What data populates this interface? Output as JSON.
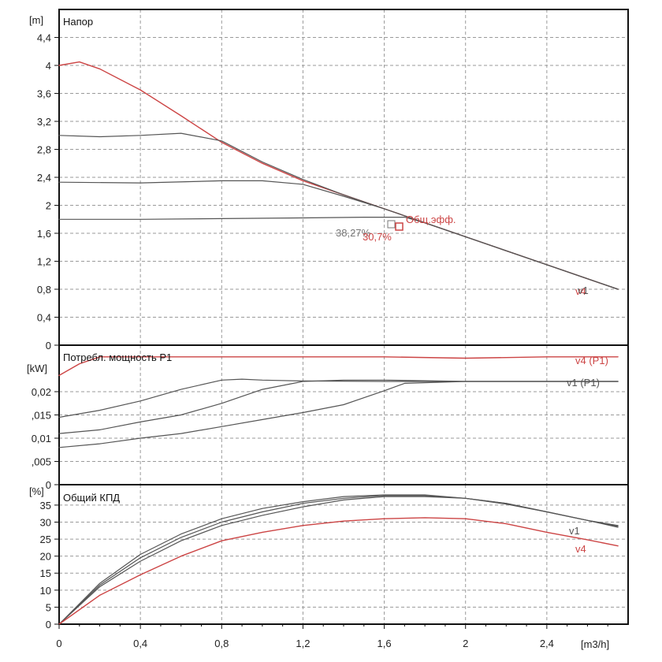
{
  "chart_data": [
    {
      "type": "line",
      "title": "Напор",
      "ylabel": "[m]",
      "xlabel": "[m3/h]",
      "xlim": [
        0,
        2.8
      ],
      "ylim": [
        0,
        4.8
      ],
      "x_ticks": [
        "0",
        "0,4",
        "0,8",
        "1,2",
        "1,6",
        "2",
        "2,4"
      ],
      "y_ticks": [
        "0",
        "0,4",
        "0,8",
        "1,2",
        "1,6",
        "2",
        "2,4",
        "2,8",
        "3,2",
        "3,6",
        "4",
        "4,4"
      ],
      "grid": true,
      "series": [
        {
          "name": "v4",
          "color": "#cc4444",
          "x": [
            0,
            0.1,
            0.2,
            0.4,
            0.6,
            0.8,
            1.0,
            1.2,
            1.4,
            1.6,
            1.8,
            2.0,
            2.2,
            2.4,
            2.6,
            2.75
          ],
          "y": [
            4.0,
            4.05,
            3.95,
            3.65,
            3.28,
            2.9,
            2.6,
            2.35,
            2.15,
            1.95,
            1.75,
            1.55,
            1.35,
            1.15,
            0.95,
            0.8
          ]
        },
        {
          "x": [
            0,
            0.2,
            0.4,
            0.6,
            0.8,
            1.0,
            1.2,
            1.4,
            1.6,
            1.8,
            2.0,
            2.2,
            2.4,
            2.6,
            2.75
          ],
          "y": [
            3.0,
            2.98,
            3.0,
            3.03,
            2.92,
            2.62,
            2.37,
            2.15,
            1.95,
            1.75,
            1.55,
            1.35,
            1.15,
            0.95,
            0.8
          ],
          "color": "#555555"
        },
        {
          "x": [
            0,
            0.4,
            0.8,
            1.0,
            1.2,
            1.4,
            1.6,
            1.8,
            2.0,
            2.2,
            2.4,
            2.6,
            2.75
          ],
          "y": [
            2.33,
            2.32,
            2.35,
            2.35,
            2.3,
            2.13,
            1.95,
            1.75,
            1.55,
            1.35,
            1.15,
            0.95,
            0.8
          ],
          "color": "#555555"
        },
        {
          "name": "v1",
          "color": "#555555",
          "x": [
            0,
            0.4,
            0.8,
            1.2,
            1.5,
            1.7,
            1.8,
            2.0,
            2.2,
            2.4,
            2.6,
            2.75
          ],
          "y": [
            1.8,
            1.8,
            1.81,
            1.82,
            1.83,
            1.83,
            1.75,
            1.55,
            1.35,
            1.15,
            0.95,
            0.8
          ]
        }
      ],
      "annotations": [
        "Общ.эфф.",
        "38,27%",
        "30,7%"
      ]
    },
    {
      "type": "line",
      "title": "Потребл. мощность P1",
      "ylabel": "[kW]",
      "xlim": [
        0,
        2.8
      ],
      "ylim": [
        0,
        0.03
      ],
      "y_ticks": [
        "0",
        ",005",
        "0,01",
        ",015",
        "0,02"
      ],
      "grid": true,
      "series": [
        {
          "name": "v4 (P1)",
          "color": "#cc4444",
          "x": [
            0,
            0.1,
            0.2,
            0.4,
            0.8,
            1.2,
            1.6,
            2.0,
            2.4,
            2.75
          ],
          "y": [
            0.0235,
            0.026,
            0.0275,
            0.0275,
            0.0275,
            0.0275,
            0.0275,
            0.0272,
            0.0275,
            0.0275
          ]
        },
        {
          "x": [
            0,
            0.2,
            0.4,
            0.6,
            0.8,
            0.9,
            1.0,
            1.2,
            1.6,
            2.0,
            2.4,
            2.75
          ],
          "y": [
            0.0145,
            0.016,
            0.018,
            0.0205,
            0.0225,
            0.0227,
            0.0225,
            0.0223,
            0.0222,
            0.0222,
            0.0222,
            0.0222
          ],
          "color": "#555555"
        },
        {
          "x": [
            0,
            0.2,
            0.4,
            0.6,
            0.8,
            1.0,
            1.2,
            1.4,
            1.6,
            2.0,
            2.4,
            2.75
          ],
          "y": [
            0.011,
            0.0118,
            0.0135,
            0.015,
            0.0175,
            0.0205,
            0.0222,
            0.0225,
            0.0225,
            0.0222,
            0.0222,
            0.0222
          ],
          "color": "#555555"
        },
        {
          "name": "v1 (P1)",
          "color": "#555555",
          "x": [
            0,
            0.2,
            0.4,
            0.6,
            0.8,
            1.0,
            1.2,
            1.4,
            1.6,
            1.7,
            2.0,
            2.4,
            2.75
          ],
          "y": [
            0.008,
            0.0088,
            0.01,
            0.011,
            0.0125,
            0.014,
            0.0155,
            0.0172,
            0.0202,
            0.0218,
            0.0222,
            0.0222,
            0.0222
          ]
        }
      ]
    },
    {
      "type": "line",
      "title": "Общий КПД",
      "ylabel": "[%]",
      "xlabel": "[m3/h]",
      "xlim": [
        0,
        2.8
      ],
      "ylim": [
        0,
        41
      ],
      "x_ticks": [
        "0",
        "0,4",
        "0,8",
        "1,2",
        "1,6",
        "2",
        "2,4"
      ],
      "y_ticks": [
        "0",
        "5",
        "10",
        "15",
        "20",
        "25",
        "30",
        "35"
      ],
      "grid": true,
      "series": [
        {
          "x": [
            0,
            0.2,
            0.4,
            0.6,
            0.8,
            1.0,
            1.2,
            1.4,
            1.6,
            1.8,
            2.0,
            2.2,
            2.4,
            2.6,
            2.75
          ],
          "y": [
            0,
            12,
            20.5,
            26.5,
            31,
            34,
            36,
            37.5,
            38,
            38,
            37,
            35.5,
            33,
            30.5,
            28.5
          ],
          "color": "#555555"
        },
        {
          "x": [
            0,
            0.2,
            0.4,
            0.6,
            0.8,
            1.0,
            1.2,
            1.4,
            1.6,
            1.8,
            2.0,
            2.2,
            2.4,
            2.6,
            2.75
          ],
          "y": [
            0,
            11.5,
            19.5,
            25.5,
            30,
            33,
            35.5,
            37,
            37.8,
            37.8,
            37,
            35.5,
            33,
            30.5,
            28.8
          ],
          "color": "#555555"
        },
        {
          "name": "v1",
          "color": "#555555",
          "x": [
            0,
            0.2,
            0.4,
            0.6,
            0.8,
            1.0,
            1.2,
            1.4,
            1.6,
            1.8,
            2.0,
            2.2,
            2.4,
            2.6,
            2.75
          ],
          "y": [
            0,
            11,
            18.5,
            24.5,
            29,
            32,
            34.5,
            36.5,
            37.5,
            37.5,
            37,
            35.3,
            33,
            30.5,
            29
          ]
        },
        {
          "name": "v4",
          "color": "#cc4444",
          "x": [
            0,
            0.2,
            0.4,
            0.6,
            0.8,
            1.0,
            1.2,
            1.4,
            1.6,
            1.8,
            2.0,
            2.2,
            2.4,
            2.6,
            2.75
          ],
          "y": [
            0,
            8.5,
            14.5,
            20,
            24.5,
            27,
            29,
            30.3,
            31,
            31.3,
            31,
            29.5,
            27,
            24.8,
            23
          ]
        }
      ]
    }
  ]
}
